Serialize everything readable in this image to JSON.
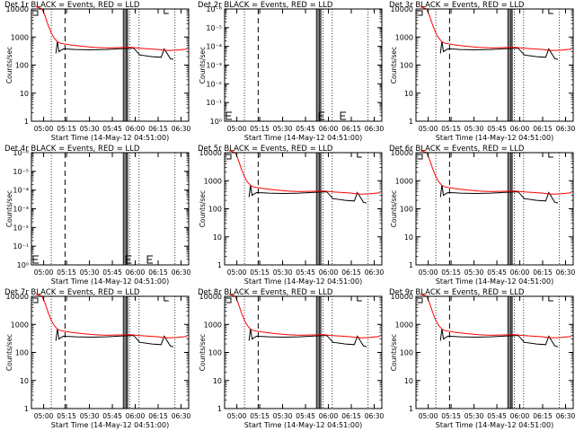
{
  "colors": {
    "events": "#000000",
    "lld": "#ff0000",
    "background": "#ffffff"
  },
  "chart_data": [
    {
      "type": "line",
      "title": "Det 1r BLACK = Events, RED = LLD",
      "xlabel": "Start Time (14-May-12 04:51:00)",
      "ylabel": "Counts/sec",
      "xticks": [
        "05:00",
        "05:15",
        "05:30",
        "05:45",
        "06:00",
        "06:15",
        "06:30"
      ],
      "yticks": [
        "1",
        "10",
        "100",
        "1000",
        "10000"
      ],
      "y_scale": "log",
      "ylim": [
        1,
        10000
      ],
      "grid": false
    },
    {
      "type": "line",
      "title": "Det 2r BLACK = Events, RED = LLD",
      "xlabel": "Start Time (14-May-12 04:51:00)",
      "ylabel": "Counts/sec",
      "xticks": [
        "05:00",
        "05:15",
        "05:30",
        "05:45",
        "06:00",
        "06:15",
        "06:30"
      ],
      "yticks": [
        "10⁰",
        "10⁻¹",
        "10⁻²",
        "10⁻³",
        "10⁻⁴",
        "10⁻⁵",
        "10⁻⁶"
      ],
      "y_scale": "log",
      "ylim": [
        1e-06,
        1
      ],
      "grid": false
    },
    {
      "type": "line",
      "title": "Det 3r BLACK = Events, RED = LLD",
      "xlabel": "Start Time (14-May-12 04:51:00)",
      "ylabel": "Counts/sec",
      "xticks": [
        "05:00",
        "05:15",
        "05:30",
        "05:45",
        "06:00",
        "06:15",
        "06:30"
      ],
      "yticks": [
        "1",
        "10",
        "100",
        "1000",
        "10000"
      ],
      "y_scale": "log",
      "ylim": [
        1,
        10000
      ],
      "grid": false
    },
    {
      "type": "line",
      "title": "Det 4r BLACK = Events, RED = LLD",
      "xlabel": "Start Time (14-May-12 04:51:00)",
      "ylabel": "Counts/sec",
      "xticks": [
        "05:00",
        "05:15",
        "05:30",
        "05:45",
        "06:00",
        "06:15",
        "06:30"
      ],
      "yticks": [
        "10⁰",
        "10⁻¹",
        "10⁻²",
        "10⁻³",
        "10⁻⁴",
        "10⁻⁵",
        "10⁻⁶"
      ],
      "y_scale": "log",
      "ylim": [
        1e-06,
        1
      ],
      "grid": false
    },
    {
      "type": "line",
      "title": "Det 5r BLACK = Events, RED = LLD",
      "xlabel": "Start Time (14-May-12 04:51:00)",
      "ylabel": "Counts/sec",
      "xticks": [
        "05:00",
        "05:15",
        "05:30",
        "05:45",
        "06:00",
        "06:15",
        "06:30"
      ],
      "yticks": [
        "1",
        "10",
        "100",
        "1000",
        "10000"
      ],
      "y_scale": "log",
      "ylim": [
        1,
        10000
      ],
      "grid": false
    },
    {
      "type": "line",
      "title": "Det 6r BLACK = Events, RED = LLD",
      "xlabel": "Start Time (14-May-12 04:51:00)",
      "ylabel": "Counts/sec",
      "xticks": [
        "05:00",
        "05:15",
        "05:30",
        "05:45",
        "06:00",
        "06:15",
        "06:30"
      ],
      "yticks": [
        "1",
        "10",
        "100",
        "1000",
        "10000"
      ],
      "y_scale": "log",
      "ylim": [
        1,
        10000
      ],
      "grid": false
    },
    {
      "type": "line",
      "title": "Det 7r BLACK = Events, RED = LLD",
      "xlabel": "Start Time (14-May-12 04:51:00)",
      "ylabel": "Counts/sec",
      "xticks": [
        "05:00",
        "05:15",
        "05:30",
        "05:45",
        "06:00",
        "06:15",
        "06:30"
      ],
      "yticks": [
        "1",
        "10",
        "100",
        "1000",
        "10000"
      ],
      "y_scale": "log",
      "ylim": [
        1,
        10000
      ],
      "grid": false
    },
    {
      "type": "line",
      "title": "Det 8r BLACK = Events, RED = LLD",
      "xlabel": "Start Time (14-May-12 04:51:00)",
      "ylabel": "Counts/sec",
      "xticks": [
        "05:00",
        "05:15",
        "05:30",
        "05:45",
        "06:00",
        "06:15",
        "06:30"
      ],
      "yticks": [
        "1",
        "10",
        "100",
        "1000",
        "10000"
      ],
      "y_scale": "log",
      "ylim": [
        1,
        10000
      ],
      "grid": false
    },
    {
      "type": "line",
      "title": "Det 9r BLACK = Events, RED = LLD",
      "xlabel": "Start Time (14-May-12 04:51:00)",
      "ylabel": "Counts/sec",
      "xticks": [
        "05:00",
        "05:15",
        "05:30",
        "05:45",
        "06:00",
        "06:15",
        "06:30"
      ],
      "yticks": [
        "1",
        "10",
        "100",
        "1000",
        "10000"
      ],
      "y_scale": "log",
      "ylim": [
        1,
        10000
      ],
      "grid": false
    }
  ]
}
